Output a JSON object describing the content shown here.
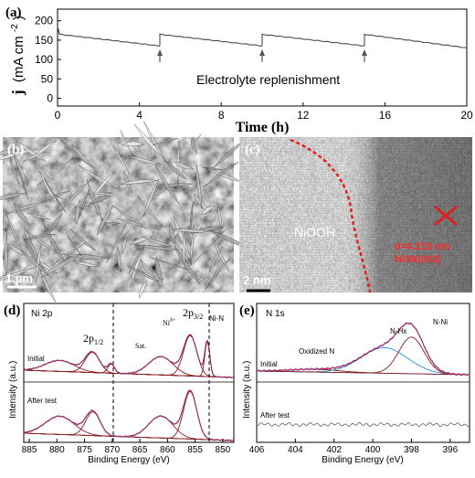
{
  "panel_a": {
    "label": "(a)",
    "ylabel_j": "j",
    "ylabel_unit": "(mA cm",
    "ylabel_sup": "-2",
    "ylabel_close": ")",
    "xlabel": "Time (h)",
    "annotation": "Electrolyte replenishment",
    "yticks": [
      "0",
      "50",
      "100",
      "150",
      "200"
    ],
    "xticks": [
      "0",
      "4",
      "8",
      "12",
      "16",
      "20"
    ]
  },
  "panel_b": {
    "label": "(b)",
    "scale": "1 µm"
  },
  "panel_c": {
    "label": "(c)",
    "scale": "2 nm",
    "phase": "NiOOH",
    "dspacing": "d=0.215 nm",
    "plane": "Ni3N(002)"
  },
  "panel_d": {
    "label": "(d)",
    "title": "Ni 2p",
    "peak_2p12": "2p",
    "peak_2p12_sub": "1/2",
    "peak_2p32": "2p",
    "peak_2p32_sub": "3/2",
    "sat": "Sat.",
    "ni_ion": "Ni",
    "ni_ion_sup": "δ+",
    "ni_n": "Ni-N",
    "initial": "Initial",
    "after": "After test",
    "ylabel": "Intensity (a.u.)",
    "xlabel": "Binding Energy (eV)",
    "xticks": [
      "885",
      "880",
      "875",
      "870",
      "865",
      "860",
      "855",
      "850"
    ]
  },
  "panel_e": {
    "label": "(e)",
    "title": "N 1s",
    "oxidized": "Oxidized N",
    "nhx": "N-Hx",
    "nni": "N-Ni",
    "initial": "Initial",
    "after": "After test",
    "ylabel": "Intensity (a.u.)",
    "xlabel": "Binding Energy (eV)",
    "xticks": [
      "406",
      "404",
      "402",
      "400",
      "398",
      "396"
    ]
  },
  "chart_data": [
    {
      "type": "line",
      "xlabel": "Time (h)",
      "ylabel": "j (mA cm-2)",
      "xlim": [
        0,
        20
      ],
      "ylim": [
        -20,
        230
      ],
      "series": [
        {
          "x": [
            0,
            0.1,
            5
          ],
          "values": [
            185,
            165,
            135
          ]
        },
        {
          "x": [
            5,
            10
          ],
          "values": [
            165,
            135
          ]
        },
        {
          "x": [
            10,
            15
          ],
          "values": [
            165,
            135
          ]
        },
        {
          "x": [
            15,
            20
          ],
          "values": [
            165,
            130
          ]
        }
      ],
      "annotations": [
        {
          "x": 5,
          "text": "Electrolyte replenishment"
        },
        {
          "x": 10
        },
        {
          "x": 15
        }
      ]
    },
    {
      "type": "line",
      "xlabel": "Binding Energy (eV)",
      "ylabel": "Intensity (a.u.)",
      "xlim": [
        886,
        848
      ],
      "peaks_eV": [
        879.5,
        873.6,
        870.2,
        861.2,
        855.9,
        852.8
      ]
    },
    {
      "type": "line",
      "xlabel": "Binding Energy (eV)",
      "ylabel": "Intensity (a.u.)",
      "xlim": [
        406,
        395
      ],
      "peaks_eV": [
        403.0,
        399.4,
        398.0
      ]
    }
  ],
  "colors": {
    "data": "#4a4a4a",
    "envelope": "#e0218a",
    "fit": "#8b1a1a",
    "background": "#2a8fd6",
    "dash": "#d21b1b"
  }
}
